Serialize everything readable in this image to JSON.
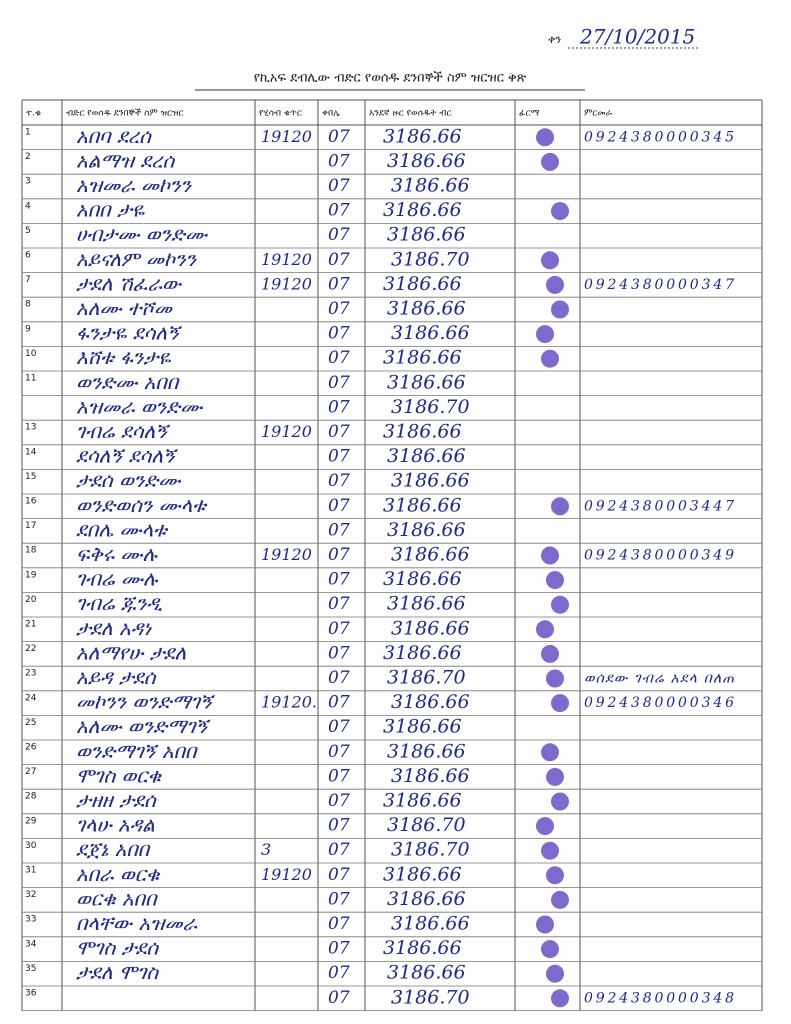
{
  "header": {
    "date_label": "ቀን",
    "date": "27/10/2015",
    "title": "የኪአፍ ደብሊው ብድር የወሰዱ ደንበኞች ስም ዝርዝር ቅጽ"
  },
  "table": {
    "columns": [
      "ተ.ቁ",
      "ብድር የወሰዱ ደንበኞች ስም ዝርዝር",
      "የሂሳብ ቁጥር",
      "ቀበሌ",
      "አንደኛ ዙር የወሰዱት ብር",
      "ፊርማ",
      "ምርመራ"
    ],
    "rows": [
      {
        "no": "1",
        "name": "አበባ ደረሰ",
        "account": "19120",
        "kebele": "07",
        "amount": "3186.66",
        "remark": "0924380000345"
      },
      {
        "no": "2",
        "name": "አልማዝ ደረሰ",
        "kebele": "07",
        "amount": "3186.66"
      },
      {
        "no": "3",
        "name": "አዝመራ መኮንን",
        "kebele": "07",
        "amount": "3186.66"
      },
      {
        "no": "4",
        "name": "አበበ ታዬ",
        "kebele": "07",
        "amount": "3186.66"
      },
      {
        "no": "5",
        "name": "ሀብታሙ ወንድሙ",
        "kebele": "07",
        "amount": "3186.66"
      },
      {
        "no": "6",
        "name": "አይናለም መኮንን",
        "account": "19120",
        "kebele": "07",
        "amount": "3186.70"
      },
      {
        "no": "7",
        "name": "ታደለ ሽፈራው",
        "account": "19120",
        "kebele": "07",
        "amount": "3186.66",
        "remark": "0924380000347"
      },
      {
        "no": "8",
        "name": "አለሙ ተሾመ",
        "kebele": "07",
        "amount": "3186.66"
      },
      {
        "no": "9",
        "name": "ፋንታዬ ደሳለኝ",
        "kebele": "07",
        "amount": "3186.66"
      },
      {
        "no": "10",
        "name": "እሸቱ ፋንታዬ",
        "kebele": "07",
        "amount": "3186.66"
      },
      {
        "no": "11",
        "name": "ወንድሙ አበበ",
        "kebele": "07",
        "amount": "3186.66"
      },
      {
        "name": "አዝመራ ወንድሙ",
        "kebele": "07",
        "amount": "3186.70"
      },
      {
        "no": "13",
        "name": "ገብሬ ደሳለኝ",
        "account": "19120",
        "kebele": "07",
        "amount": "3186.66"
      },
      {
        "no": "14",
        "name": "ደሳለኝ ደሳለኝ",
        "kebele": "07",
        "amount": "3186.66"
      },
      {
        "no": "15",
        "name": "ታደሰ ወንድሙ",
        "kebele": "07",
        "amount": "3186.66"
      },
      {
        "no": "16",
        "name": "ወንድወሰን ሙላቱ",
        "kebele": "07",
        "amount": "3186.66",
        "remark": "0924380003447"
      },
      {
        "no": "17",
        "name": "ደበሌ ሙላቱ",
        "kebele": "07",
        "amount": "3186.66"
      },
      {
        "no": "18",
        "name": "ፍቅሩ ሙሉ",
        "account": "19120",
        "kebele": "07",
        "amount": "3186.66",
        "remark": "0924380000349"
      },
      {
        "no": "19",
        "name": "ገብሬ ሙሉ",
        "kebele": "07",
        "amount": "3186.66"
      },
      {
        "no": "20",
        "name": "ገብሬ ጁንዲ",
        "kebele": "07",
        "amount": "3186.66"
      },
      {
        "no": "21",
        "name": "ታደለ አዳነ",
        "kebele": "07",
        "amount": "3186.66"
      },
      {
        "no": "22",
        "name": "አለማየሁ ታደለ",
        "kebele": "07",
        "amount": "3186.66"
      },
      {
        "no": "23",
        "name": "አይዳ ታደሰ",
        "kebele": "07",
        "amount": "3186.70",
        "remark": "ወሰደው ገብሬ አደላ በለጠ"
      },
      {
        "no": "24",
        "name": "መኮንን ወንድማገኝ",
        "account": "19120.",
        "kebele": "07",
        "amount": "3186.66",
        "remark": "0924380000346"
      },
      {
        "no": "25",
        "name": "አለሙ ወንድማገኝ",
        "kebele": "07",
        "amount": "3186.66"
      },
      {
        "no": "26",
        "name": "ወንድማገኝ አበበ",
        "kebele": "07",
        "amount": "3186.66"
      },
      {
        "no": "27",
        "name": "ሞገስ ወርቁ",
        "kebele": "07",
        "amount": "3186.66"
      },
      {
        "no": "28",
        "name": "ታዘዘ ታደሰ",
        "kebele": "07",
        "amount": "3186.66"
      },
      {
        "no": "29",
        "name": "ገላሁ አዳል",
        "kebele": "07",
        "amount": "3186.70"
      },
      {
        "no": "30",
        "name": "ደጀኔ አበበ",
        "account": "3",
        "kebele": "07",
        "amount": "3186.70"
      },
      {
        "no": "31",
        "name": "አበራ ወርቁ",
        "account": "19120",
        "kebele": "07",
        "amount": "3186.66"
      },
      {
        "no": "32",
        "name": "ወርቁ አበበ",
        "kebele": "07",
        "amount": "3186.66"
      },
      {
        "no": "33",
        "name": "በላቸው አዝመራ",
        "kebele": "07",
        "amount": "3186.66"
      },
      {
        "no": "34",
        "name": "ሞገስ ታደሰ",
        "kebele": "07",
        "amount": "3186.66"
      },
      {
        "no": "35",
        "name": "ታደለ ሞገስ",
        "kebele": "07",
        "amount": "3186.66"
      },
      {
        "no": "36",
        "kebele": "07",
        "amount": "3186.70",
        "remark": "0924380000348"
      }
    ]
  }
}
